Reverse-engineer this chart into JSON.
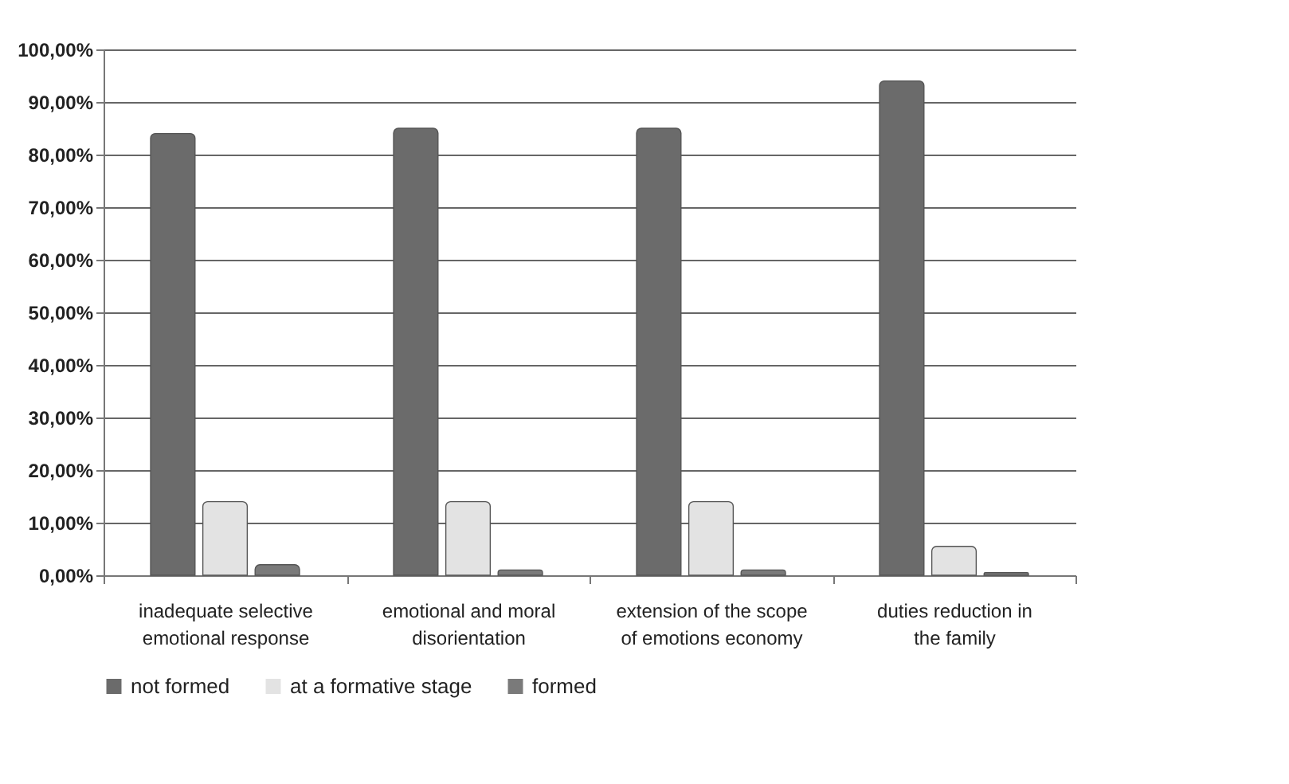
{
  "chart_data": {
    "type": "bar",
    "categories": [
      "inadequate selective emotional response",
      "emotional and moral disorientation",
      "extension of the scope of emotions economy",
      "duties reduction in the family"
    ],
    "series": [
      {
        "name": "not formed",
        "color": "#6b6b6b",
        "values": [
          84,
          85,
          85,
          94
        ]
      },
      {
        "name": "at a formative stage",
        "color": "#e3e3e3",
        "values": [
          14,
          14,
          14,
          5.5
        ]
      },
      {
        "name": "formed",
        "color": "#7a7a7a",
        "values": [
          2,
          1,
          1,
          0.5
        ]
      }
    ],
    "ylim": [
      0,
      100
    ],
    "yticks": [
      {
        "value": 0,
        "label": "0,00%"
      },
      {
        "value": 10,
        "label": "10,00%"
      },
      {
        "value": 20,
        "label": "20,00%"
      },
      {
        "value": 30,
        "label": "30,00%"
      },
      {
        "value": 40,
        "label": "40,00%"
      },
      {
        "value": 50,
        "label": "50,00%"
      },
      {
        "value": 60,
        "label": "60,00%"
      },
      {
        "value": 70,
        "label": "70,00%"
      },
      {
        "value": 80,
        "label": "80,00%"
      },
      {
        "value": 90,
        "label": "90,00%"
      },
      {
        "value": 100,
        "label": "100,00%"
      }
    ],
    "grid": "y",
    "legend": "bottom"
  }
}
